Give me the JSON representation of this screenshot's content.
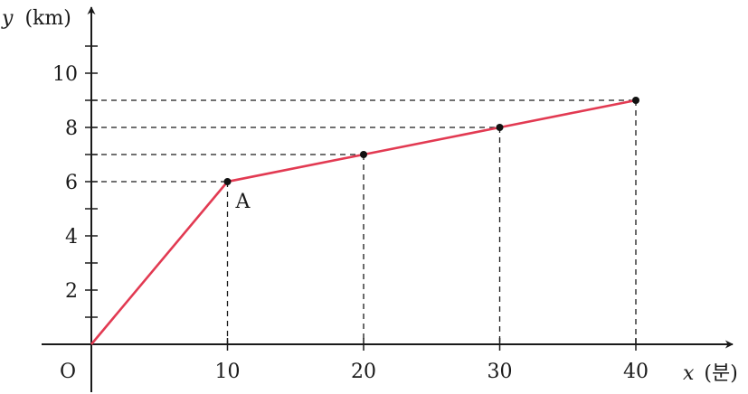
{
  "chart_data": {
    "type": "line",
    "x": [
      0,
      10,
      20,
      30,
      40
    ],
    "series": [
      {
        "values": [
          0,
          6,
          7,
          8,
          9
        ],
        "color": "#e23a52"
      }
    ],
    "xlabel": {
      "var": "x",
      "unit": "(분)"
    },
    "ylabel": {
      "var": "y",
      "unit": "(km)"
    },
    "xticks": [
      10,
      20,
      30,
      40
    ],
    "yticks": [
      2,
      4,
      6,
      8,
      10
    ],
    "xlim": [
      0,
      40
    ],
    "ylim": [
      0,
      10
    ],
    "origin_label": "O",
    "annotations": [
      {
        "x": 10,
        "y": 6,
        "text": "A"
      }
    ],
    "guides": "dashed lines from marked points to both axes",
    "grid": false,
    "axis_color": "#1a1a1a",
    "guide_color": "#1a1a1a",
    "point_color": "#111111"
  }
}
